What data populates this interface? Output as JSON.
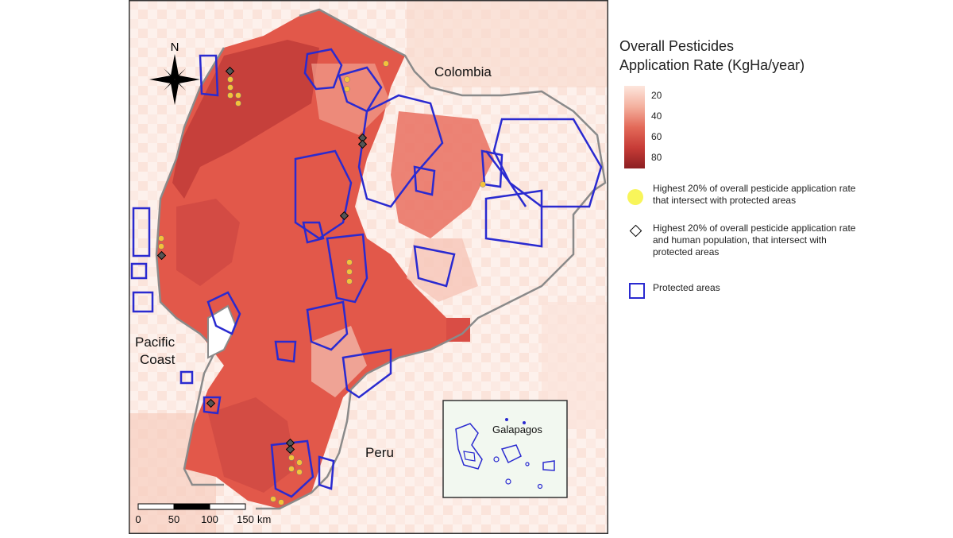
{
  "map": {
    "labels": {
      "north": "N",
      "colombia": "Colombia",
      "peru": "Peru",
      "pacific_line1": "Pacific",
      "pacific_line2": "Coast",
      "galapagos": "Galapagos"
    },
    "scale_bar": {
      "ticks": [
        "0",
        "50",
        "100",
        "150"
      ],
      "unit": "km"
    }
  },
  "legend": {
    "title_line1": "Overall Pesticides",
    "title_line2": "Application Rate (KgHa/year)",
    "colorbar_ticks": [
      "20",
      "40",
      "60",
      "80"
    ],
    "colorbar_colors": [
      "#fde6dd",
      "#f4b19f",
      "#e36a59",
      "#c73c37",
      "#8c1f22"
    ],
    "items": [
      {
        "symbol": "yellow-circle",
        "color": "#f8f55a",
        "label": "Highest 20% of overall pesticide application rate that intersect with protected areas"
      },
      {
        "symbol": "black-diamond",
        "color": "#000000",
        "label": "Highest 20% of overall pesticide application rate and human population, that intersect with protected areas"
      },
      {
        "symbol": "blue-square",
        "color": "#2a2ad0",
        "label": "Protected areas"
      }
    ]
  },
  "colors": {
    "protected_area_stroke": "#2a2ad0",
    "country_border": "#8a8a8a",
    "hotspot_fill": "#f3c23b",
    "inset_bg": "#f2f8f0"
  }
}
